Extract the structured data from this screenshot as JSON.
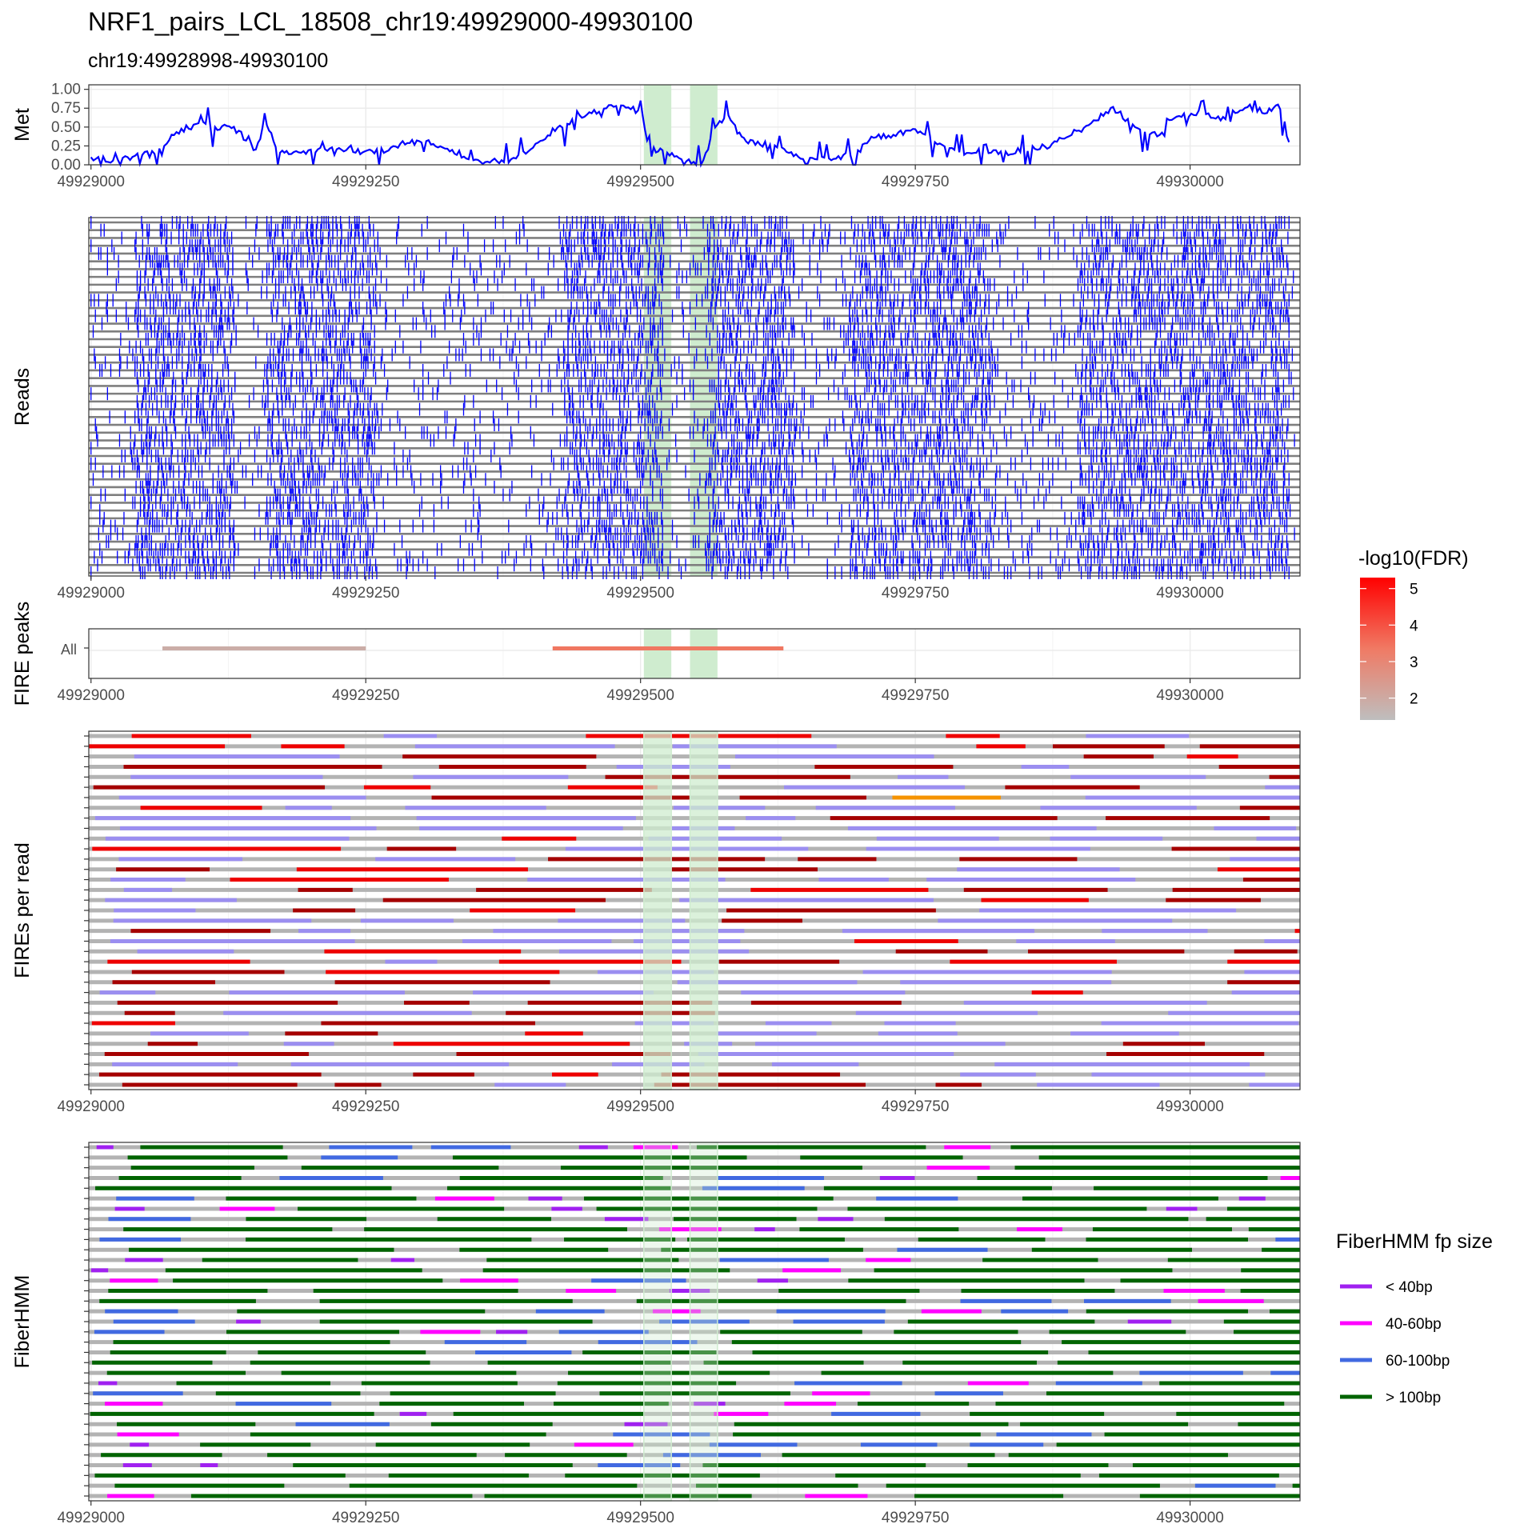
{
  "title": "NRF1_pairs_LCL_18508_chr19:49929000-49930100",
  "subtitle": "chr19:49928998-49930100",
  "colors": {
    "met_line": "#0000ff",
    "met_line_highlight": "#5a78e0",
    "read_line": "#7f7f7f",
    "read_tick": "#0000ff",
    "highlight": "#cfeccf",
    "fire_unknown": "#9b8ef0",
    "fire_red": "#ee0000",
    "fire_darkred": "#a50000",
    "fire_orange": "#f59300",
    "fire_background": "#b3b3b3",
    "fp_lt40": "#a020f0",
    "fp_40_60": "#ff00ff",
    "fp_60_100": "#4169e1",
    "fp_gt100": "#006400"
  },
  "x_axis": {
    "range": [
      49928998,
      49930100
    ],
    "ticks": [
      49929000,
      49929250,
      49929500,
      49929750,
      49930000
    ],
    "tick_labels": [
      "49929000",
      "49929250",
      "49929500",
      "49929750",
      "49930000"
    ]
  },
  "highlight_regions": [
    [
      49929503,
      49929528
    ],
    [
      49929545,
      49929570
    ]
  ],
  "panels": {
    "met": {
      "ylabel": "Met",
      "yticks": [
        "0.00",
        "0.25",
        "0.50",
        "0.75",
        "1.00"
      ]
    },
    "reads": {
      "ylabel": "Reads"
    },
    "fire_peaks": {
      "ylabel": "FIRE peaks",
      "category": "All"
    },
    "fires_per_read": {
      "ylabel": "FIREs per read"
    },
    "fiberhmm": {
      "ylabel": "FiberHMM"
    }
  },
  "legends": {
    "fdr": {
      "title": "-log10(FDR)",
      "ticks": [
        "5",
        "4",
        "3",
        "2"
      ],
      "range": [
        1.4,
        5.3
      ]
    },
    "fp": {
      "title": "FiberHMM fp size",
      "items": [
        {
          "label": "< 40bp",
          "color": "#a020f0"
        },
        {
          "label": "40-60bp",
          "color": "#ff00ff"
        },
        {
          "label": "60-100bp",
          "color": "#4169e1"
        },
        {
          "label": "> 100bp",
          "color": "#006400"
        }
      ]
    }
  },
  "chart_data": [
    {
      "type": "line",
      "title": "Met",
      "ylabel": "Met",
      "ylim": [
        0,
        1
      ],
      "x": [
        49929000,
        49929020,
        49929040,
        49929060,
        49929080,
        49929100,
        49929115,
        49929130,
        49929150,
        49929160,
        49929170,
        49929180,
        49929200,
        49929230,
        49929260,
        49929290,
        49929320,
        49929350,
        49929380,
        49929400,
        49929420,
        49929440,
        49929460,
        49929480,
        49929500,
        49929510,
        49929520,
        49929535,
        49929555,
        49929570,
        49929580,
        49929590,
        49929600,
        49929620,
        49929650,
        49929680,
        49929700,
        49929710,
        49929730,
        49929750,
        49929770,
        49929790,
        49929810,
        49929830,
        49929850,
        49929870,
        49929890,
        49929910,
        49929930,
        49929950,
        49929970,
        49929990,
        49930010,
        49930030,
        49930050,
        49930070,
        49930080,
        49930090
      ],
      "values": [
        0.1,
        0.05,
        0.1,
        0.2,
        0.45,
        0.55,
        0.5,
        0.5,
        0.2,
        0.55,
        0.2,
        0.15,
        0.18,
        0.2,
        0.18,
        0.3,
        0.25,
        0.05,
        0.05,
        0.2,
        0.45,
        0.6,
        0.7,
        0.8,
        0.75,
        0.1,
        0.2,
        0.1,
        0.0,
        0.55,
        0.65,
        0.4,
        0.3,
        0.25,
        0.05,
        0.1,
        0.2,
        0.35,
        0.4,
        0.45,
        0.3,
        0.15,
        0.2,
        0.15,
        0.2,
        0.25,
        0.4,
        0.55,
        0.75,
        0.5,
        0.4,
        0.65,
        0.7,
        0.6,
        0.78,
        0.7,
        0.8,
        0.3
      ]
    },
    {
      "type": "heatmap",
      "title": "FIRE peaks",
      "category": "All",
      "peaks": [
        {
          "start": 49929065,
          "end": 49929250,
          "log10fdr": 1.9
        },
        {
          "start": 49929420,
          "end": 49929630,
          "log10fdr": 3.4
        }
      ]
    }
  ]
}
